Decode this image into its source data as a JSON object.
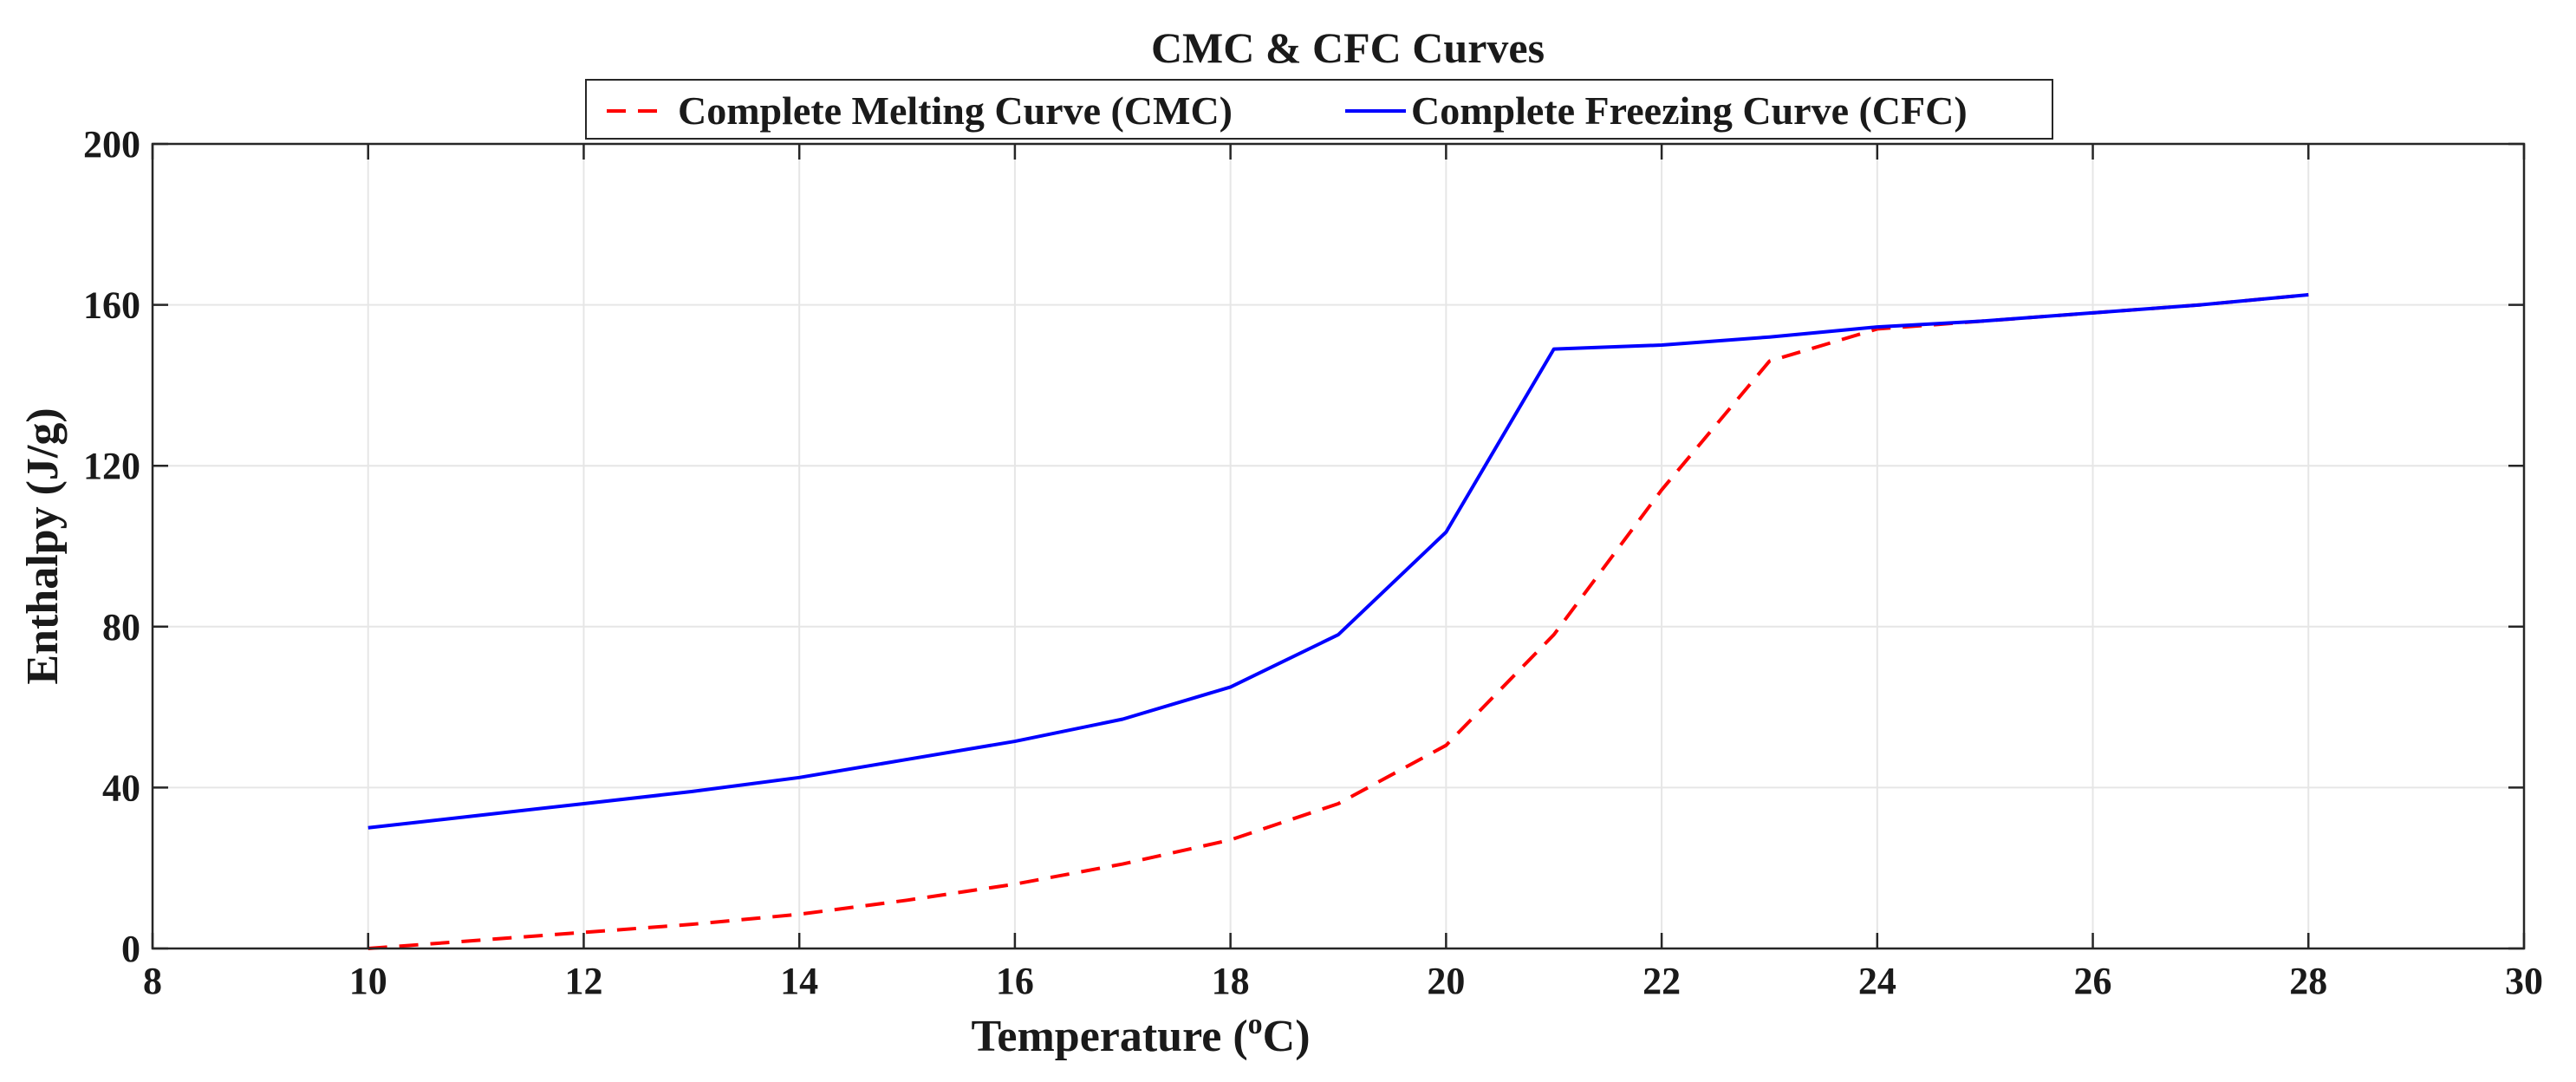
{
  "chart_data": {
    "type": "line",
    "title": "CMC & CFC Curves",
    "xlabel": "Temperature (",
    "xlabel_sup": "o",
    "xlabel_tail": "C)",
    "ylabel": "Enthalpy (J/g)",
    "xlim": [
      8,
      30
    ],
    "ylim": [
      0,
      200
    ],
    "xticks": [
      8,
      10,
      12,
      14,
      16,
      18,
      20,
      22,
      24,
      26,
      28,
      30
    ],
    "yticks": [
      0,
      40,
      80,
      120,
      160,
      200
    ],
    "grid": true,
    "legend_position": "top-center",
    "series": [
      {
        "name": "Complete Melting Curve (CMC)",
        "color": "#ff0000",
        "style": "dashed",
        "x": [
          10,
          11,
          12,
          13,
          14,
          15,
          16,
          17,
          18,
          19,
          20,
          21,
          22,
          23,
          24,
          25,
          26,
          27,
          28
        ],
        "y": [
          0,
          2,
          4,
          6,
          8.5,
          12,
          16,
          21,
          27,
          36,
          50.5,
          78,
          114,
          146,
          154,
          156,
          158,
          160,
          162.5
        ]
      },
      {
        "name": "Complete Freezing Curve (CFC)",
        "color": "#0000ff",
        "style": "solid",
        "x": [
          10,
          11,
          12,
          13,
          14,
          15,
          16,
          17,
          18,
          19,
          20,
          21,
          22,
          23,
          24,
          25,
          26,
          27,
          28
        ],
        "y": [
          30,
          33,
          36,
          39,
          42.5,
          47,
          51.5,
          57,
          65,
          78,
          103.5,
          149,
          150,
          152,
          154.5,
          156,
          158,
          160,
          162.5
        ]
      }
    ]
  }
}
